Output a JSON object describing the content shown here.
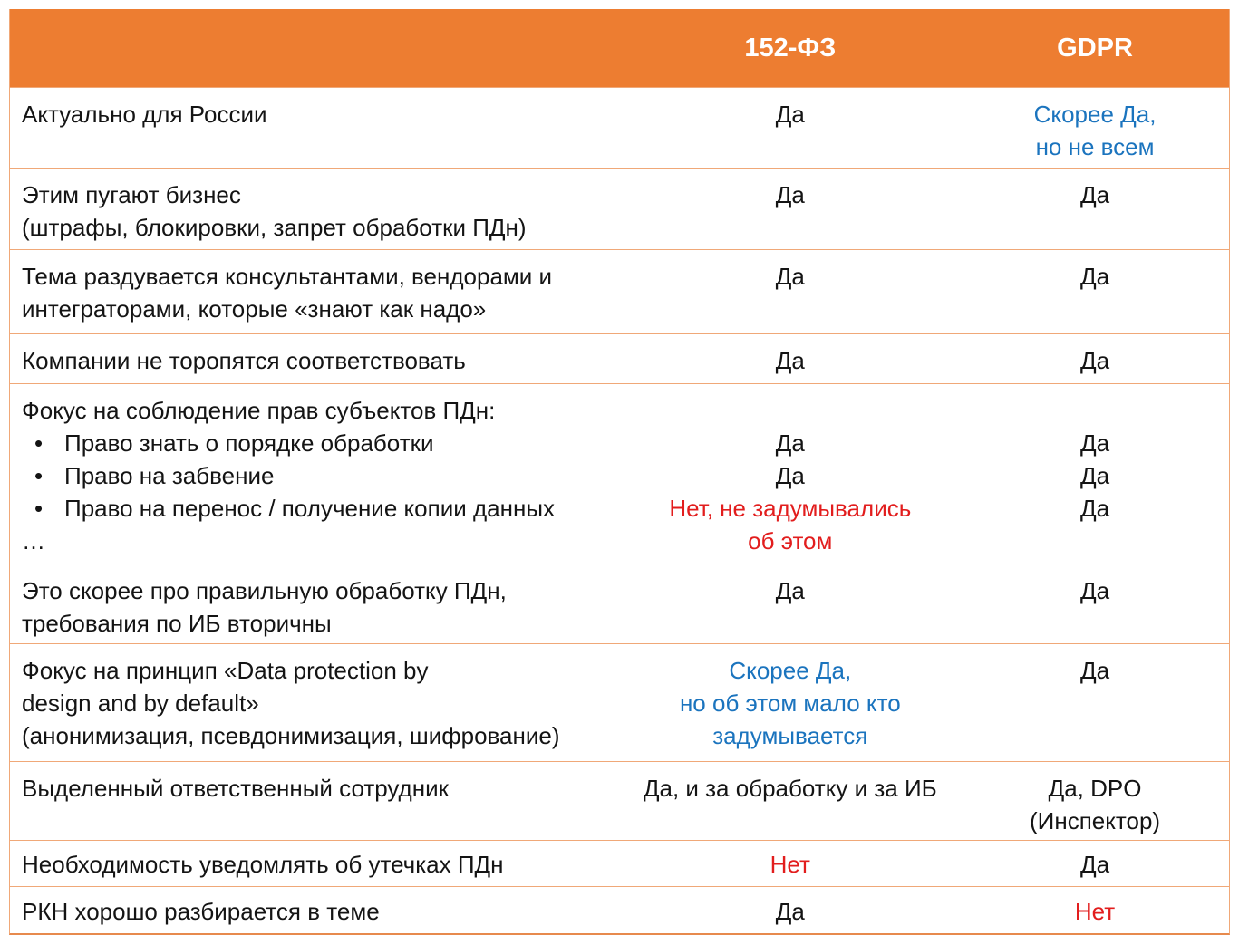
{
  "header": {
    "law_col": "152-ФЗ",
    "gdpr_col": "GDPR"
  },
  "colors": {
    "header_bg": "#ED7D31",
    "header_text": "#FFFFFF",
    "body_text": "#141414",
    "accent_blue": "#1B74BE",
    "accent_red": "#E21D1D",
    "border_light": "#F0A878",
    "border_strong": "#E78A4D"
  },
  "rows": [
    {
      "id": "relevant-russia",
      "label": [
        {
          "text": "Актуально для России"
        }
      ],
      "fz": [
        {
          "text": "Да"
        }
      ],
      "gdpr": [
        {
          "text": "Скорее Да,",
          "color": "blue"
        },
        {
          "text": "но не всем",
          "color": "blue"
        }
      ]
    },
    {
      "id": "scare-business",
      "label": [
        {
          "text": "Этим пугают бизнес"
        },
        {
          "text": "(штрафы, блокировки, запрет обработки ПДн)"
        }
      ],
      "fz": [
        {
          "text": "Да"
        }
      ],
      "gdpr": [
        {
          "text": "Да"
        }
      ]
    },
    {
      "id": "hyped-by-consultants",
      "label": [
        {
          "text": "Тема раздувается консультантами, вендорами и"
        },
        {
          "text": "интеграторами, которые «знают как надо»"
        }
      ],
      "fz": [
        {
          "text": "Да"
        }
      ],
      "gdpr": [
        {
          "text": "Да"
        }
      ]
    },
    {
      "id": "companies-slow",
      "label": [
        {
          "text": "Компании не торопятся соответствовать"
        }
      ],
      "fz": [
        {
          "text": "Да"
        }
      ],
      "gdpr": [
        {
          "text": "Да"
        }
      ]
    },
    {
      "id": "subject-rights-focus",
      "label": [
        {
          "text": "Фокус на соблюдение прав субъектов ПДн:"
        },
        {
          "text": "Право знать о порядке обработки",
          "bullet": true
        },
        {
          "text": "Право на забвение",
          "bullet": true
        },
        {
          "text": "Право на перенос / получение копии данных",
          "bullet": true
        },
        {
          "text": "…"
        }
      ],
      "fz": [
        {
          "text": "Да"
        },
        {
          "text": "Да"
        },
        {
          "text": "Нет, не задумывались",
          "color": "red"
        },
        {
          "text": "об этом",
          "color": "red"
        }
      ],
      "gdpr": [
        {
          "text": "Да"
        },
        {
          "text": "Да"
        },
        {
          "text": "Да"
        }
      ]
    },
    {
      "id": "correct-processing",
      "label": [
        {
          "text": "Это скорее про правильную обработку ПДн,"
        },
        {
          "text": "требования по ИБ вторичны"
        }
      ],
      "fz": [
        {
          "text": "Да"
        }
      ],
      "gdpr": [
        {
          "text": "Да"
        }
      ]
    },
    {
      "id": "protection-by-design",
      "label": [
        {
          "text": "Фокус на принцип «Data protection by"
        },
        {
          "text": "design and by default»"
        },
        {
          "text": "(анонимизация, псевдонимизация, шифрование)"
        }
      ],
      "fz": [
        {
          "text": "Скорее Да,",
          "color": "blue"
        },
        {
          "text": "но об этом мало кто",
          "color": "blue"
        },
        {
          "text": "задумывается",
          "color": "blue"
        }
      ],
      "gdpr": [
        {
          "text": "Да"
        }
      ]
    },
    {
      "id": "dedicated-officer",
      "label": [
        {
          "text": "Выделенный ответственный сотрудник"
        }
      ],
      "fz": [
        {
          "text": "Да, и за обработку и за ИБ"
        }
      ],
      "gdpr": [
        {
          "text": "Да, DPO"
        },
        {
          "text": "(Инспектор)"
        }
      ]
    },
    {
      "id": "breach-notification",
      "label": [
        {
          "text": "Необходимость уведомлять об утечках ПДн"
        }
      ],
      "fz": [
        {
          "text": "Нет",
          "color": "red"
        }
      ],
      "gdpr": [
        {
          "text": "Да"
        }
      ]
    },
    {
      "id": "rkn-expertise",
      "label": [
        {
          "text": "РКН хорошо разбирается в теме"
        }
      ],
      "fz": [
        {
          "text": "Да"
        }
      ],
      "gdpr": [
        {
          "text": "Нет",
          "color": "red"
        }
      ]
    }
  ]
}
